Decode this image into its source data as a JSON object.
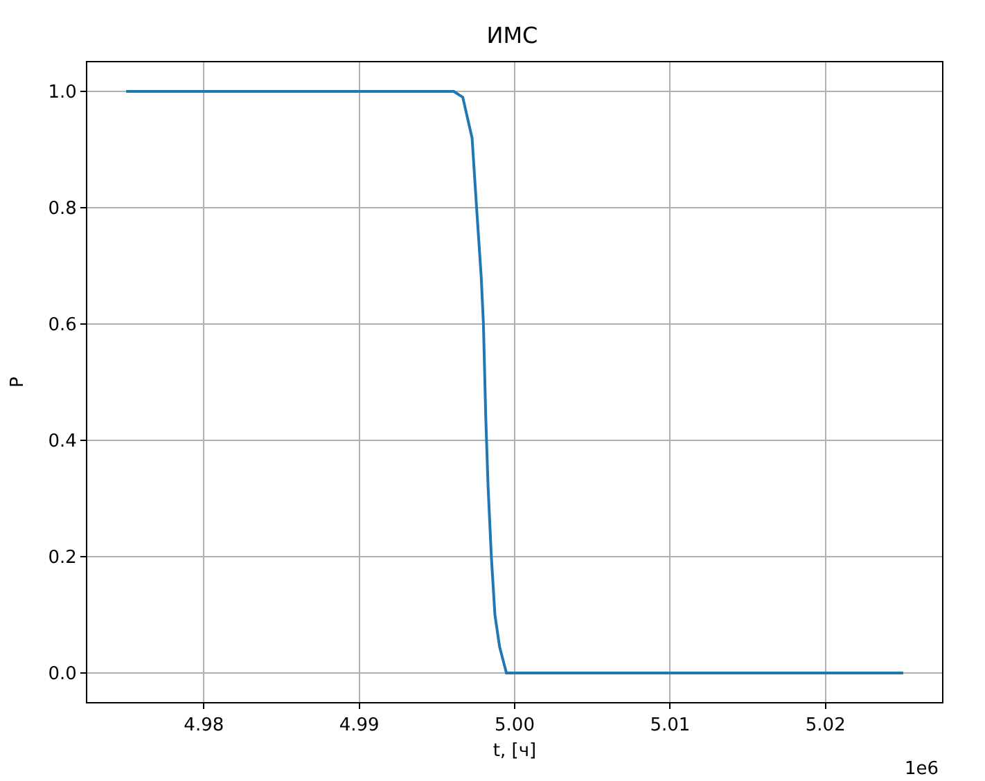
{
  "chart_data": {
    "type": "line",
    "title": "ИМС",
    "xlabel": "t, [ч]",
    "ylabel": "P",
    "annotations": [
      "1e6"
    ],
    "x": [
      4.975,
      4.985,
      4.995,
      4.99608,
      4.99666,
      4.99726,
      4.99755,
      4.99785,
      4.99799,
      4.99814,
      4.99829,
      4.9985,
      4.99873,
      4.99903,
      4.99947,
      5.0,
      5.01,
      5.025
    ],
    "series": [
      {
        "color": "#1f77b4",
        "values": [
          1.0,
          1.0,
          1.0,
          1.0,
          0.99,
          0.92,
          0.8,
          0.68,
          0.6,
          0.44,
          0.32,
          0.2,
          0.1,
          0.045,
          0.0,
          0.0,
          0.0,
          0.0
        ]
      }
    ],
    "xlim": [
      4.9725,
      5.0275
    ],
    "ylim": [
      -0.05,
      1.05
    ],
    "xticks": [
      4.98,
      4.99,
      {
        "value": 5.0,
        "label": "5.00"
      },
      5.01,
      5.02
    ],
    "yticks": [
      {
        "value": 0,
        "label": "0.0"
      },
      0.2,
      0.4,
      0.6,
      0.8,
      {
        "value": 1,
        "label": "1.0"
      }
    ],
    "grid": true,
    "marker": "none",
    "line_style": "solid"
  }
}
